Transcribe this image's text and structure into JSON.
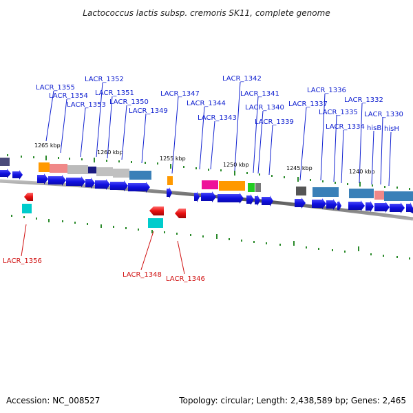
{
  "title": "Lactococcus lactis subsp. cremoris SK11, complete genome",
  "footer": {
    "accession": "Accession: NC_008527",
    "topology": "Topology: circular; Length: 2,438,589 bp; Genes: 2,465"
  },
  "ticks": [
    {
      "label": "1265 kbp"
    },
    {
      "label": "1260 kbp"
    },
    {
      "label": "1255 kbp"
    },
    {
      "label": "1250 kbp"
    },
    {
      "label": "1245 kbp"
    },
    {
      "label": "1240 kbp"
    }
  ],
  "plus_labels": [
    {
      "text": "LACR_1355"
    },
    {
      "text": "LACR_1354"
    },
    {
      "text": "LACR_1353"
    },
    {
      "text": "LACR_1352"
    },
    {
      "text": "LACR_1351"
    },
    {
      "text": "LACR_1350"
    },
    {
      "text": "LACR_1349"
    },
    {
      "text": "LACR_1347"
    },
    {
      "text": "LACR_1344"
    },
    {
      "text": "LACR_1343"
    },
    {
      "text": "LACR_1342"
    },
    {
      "text": "LACR_1341"
    },
    {
      "text": "LACR_1340"
    },
    {
      "text": "LACR_1339"
    },
    {
      "text": "LACR_1337"
    },
    {
      "text": "LACR_1336"
    },
    {
      "text": "LACR_1335"
    },
    {
      "text": "LACR_1334"
    },
    {
      "text": "LACR_1332"
    },
    {
      "text": "LACR_1330"
    },
    {
      "text": "hisB"
    },
    {
      "text": "hisH"
    }
  ],
  "minus_labels": [
    {
      "text": "LACR_1356"
    },
    {
      "text": "LACR_1348"
    },
    {
      "text": "LACR_1346"
    }
  ],
  "colors": {
    "plus_gene": "#1010e8",
    "minus_gene": "#e81010",
    "plus_label": "#1020d0",
    "minus_label": "#d01010",
    "backbone": "#888888",
    "tick": "#2a8a2a"
  }
}
